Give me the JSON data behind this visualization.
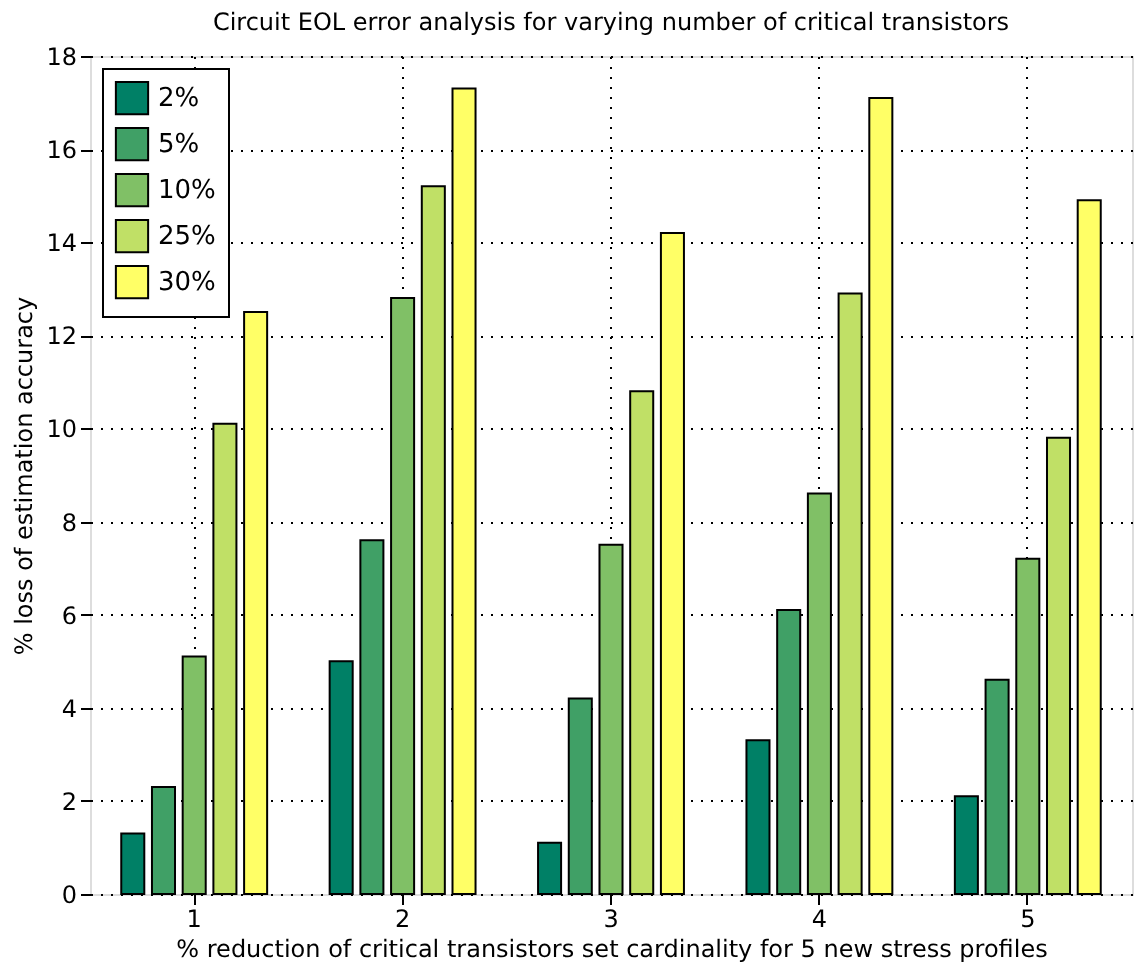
{
  "chart_data": {
    "type": "bar",
    "title": "Circuit EOL error analysis for varying number of critical transistors",
    "xlabel": "% reduction of critical transistors set cardinality for 5 new stress profiles",
    "ylabel": "% loss of estimation accuracy",
    "categories": [
      "1",
      "2",
      "3",
      "4",
      "5"
    ],
    "series": [
      {
        "name": "2%",
        "color": "#008066",
        "values": [
          1.3,
          5.0,
          1.1,
          3.3,
          2.1
        ]
      },
      {
        "name": "5%",
        "color": "#40a066",
        "values": [
          2.3,
          7.6,
          4.2,
          6.1,
          4.6
        ]
      },
      {
        "name": "10%",
        "color": "#80c066",
        "values": [
          5.1,
          12.8,
          7.5,
          8.6,
          7.2
        ]
      },
      {
        "name": "25%",
        "color": "#c0e066",
        "values": [
          10.1,
          15.2,
          10.8,
          12.9,
          9.8
        ]
      },
      {
        "name": "30%",
        "color": "#ffff66",
        "values": [
          12.5,
          17.3,
          14.2,
          17.1,
          14.9
        ]
      }
    ],
    "ylim": [
      0,
      18
    ],
    "yticks": [
      0,
      2,
      4,
      6,
      8,
      10,
      12,
      14,
      16,
      18
    ],
    "grid": true,
    "legend": "top left"
  }
}
